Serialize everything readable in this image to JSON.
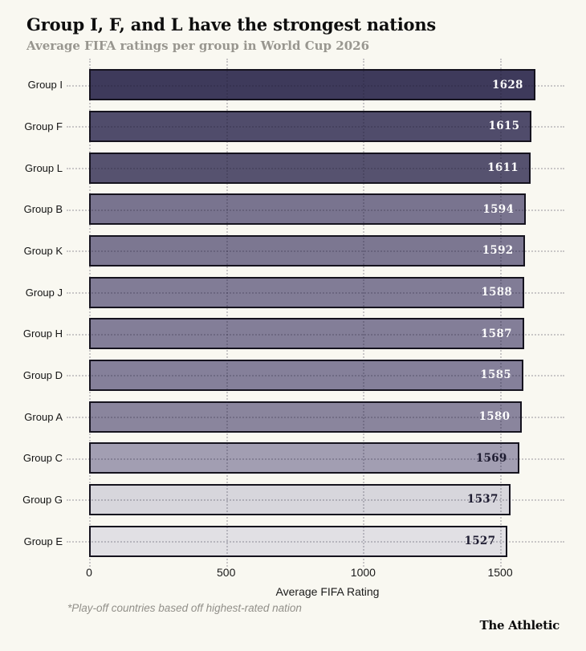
{
  "title": "Group I, F, and L have the strongest nations",
  "subtitle": "Average FIFA ratings per group in World Cup 2026",
  "chart_data": {
    "type": "bar",
    "orientation": "horizontal",
    "title": "Group I, F, and L have the strongest nations",
    "subtitle": "Average FIFA ratings per group in World Cup 2026",
    "xlabel": "Average FIFA Rating",
    "ylabel": "",
    "categories": [
      "Group I",
      "Group F",
      "Group L",
      "Group B",
      "Group K",
      "Group J",
      "Group H",
      "Group D",
      "Group A",
      "Group C",
      "Group G",
      "Group E"
    ],
    "values": [
      1628,
      1615,
      1611,
      1594,
      1592,
      1588,
      1587,
      1585,
      1580,
      1569,
      1537,
      1527
    ],
    "bar_colors": [
      "#3e3a5b",
      "#504c6b",
      "#56526f",
      "#79748f",
      "#7c7791",
      "#817c96",
      "#837e98",
      "#85809a",
      "#8a859d",
      "#a29eb2",
      "#d7d6dc",
      "#e1e0e4"
    ],
    "value_label_colors": [
      "#ffffff",
      "#ffffff",
      "#ffffff",
      "#ffffff",
      "#ffffff",
      "#ffffff",
      "#ffffff",
      "#ffffff",
      "#ffffff",
      "#1d1b30",
      "#1d1b30",
      "#1d1b30"
    ],
    "x_ticks": [
      0,
      500,
      1000,
      1500
    ],
    "xlim": [
      0,
      1740
    ],
    "grid": "dotted",
    "legend": "none"
  },
  "footnote": "*Play-off countries based off highest-rated nation",
  "branding": "The Athletic",
  "colors": {
    "background": "#f9f8f1",
    "bar_border": "#15131e",
    "grid": "rgba(30,28,52,0.22)",
    "title": "#0e0e0e",
    "subtitle": "#98968f",
    "footnote": "#92908a"
  }
}
